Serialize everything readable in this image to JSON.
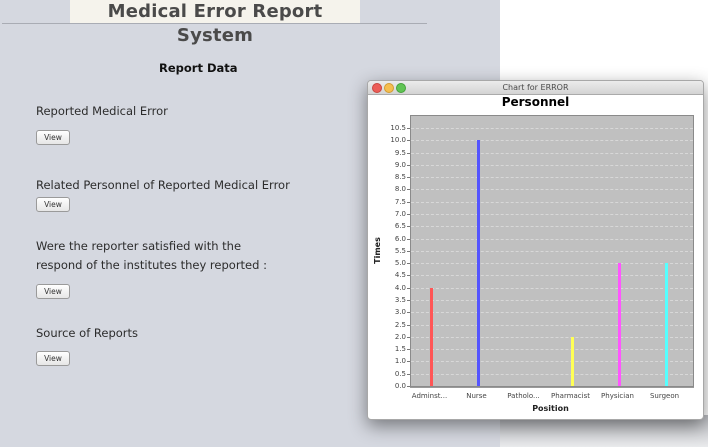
{
  "app": {
    "title": "Medical Error Report System",
    "section_title": "Report Data"
  },
  "reports": [
    {
      "label": "Reported Medical Error",
      "button": "View"
    },
    {
      "label": "Related Personnel of Reported Medical Error",
      "button": "View"
    },
    {
      "label_line1": "Were the reporter satisfied with the",
      "label_line2": "respond of the institutes they reported :",
      "button": "View"
    },
    {
      "label": "Source of Reports",
      "button": "View"
    }
  ],
  "chart_window": {
    "title": "Chart for ERROR"
  },
  "chart_data": {
    "type": "bar",
    "title": "Personnel",
    "xlabel": "Position",
    "ylabel": "Times",
    "ylim": [
      0,
      10.5
    ],
    "yticks": [
      "0.0",
      "0.5",
      "1.0",
      "1.5",
      "2.0",
      "2.5",
      "3.0",
      "3.5",
      "4.0",
      "4.5",
      "5.0",
      "5.5",
      "6.0",
      "6.5",
      "7.0",
      "7.5",
      "8.0",
      "8.5",
      "9.0",
      "9.5",
      "10.0",
      "10.5"
    ],
    "categories": [
      "Adminst...",
      "Nurse",
      "Patholo...",
      "Pharmacist",
      "Physician",
      "Surgeon"
    ],
    "values": [
      4,
      10,
      0,
      2,
      5,
      5
    ],
    "colors": [
      "#ff5555",
      "#5555ff",
      "#55ff55",
      "#ffff55",
      "#ff55ff",
      "#55ffff"
    ],
    "grid": true,
    "legend": false
  }
}
